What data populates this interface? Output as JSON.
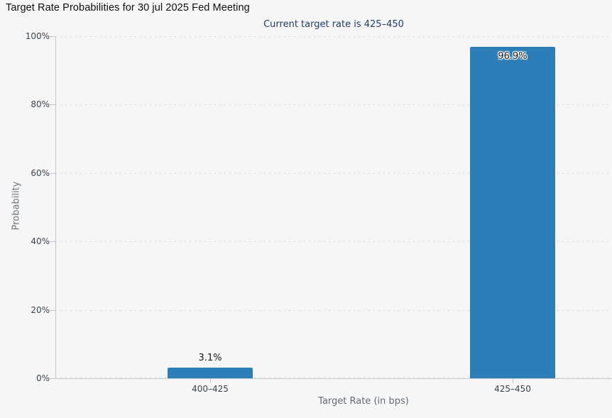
{
  "chart_data": {
    "type": "bar",
    "title": "Target Rate Probabilities for 30 jul 2025 Fed Meeting",
    "subtitle": "Current target rate is 425–450",
    "categories": [
      "400–425",
      "425–450"
    ],
    "values": [
      3.1,
      96.9
    ],
    "value_labels": [
      "3.1%",
      "96.9%"
    ],
    "xlabel": "Target Rate (in bps)",
    "ylabel": "Probability",
    "ylim": [
      0,
      100
    ],
    "ytick_values": [
      0,
      20,
      40,
      60,
      80,
      100
    ],
    "ytick_labels": [
      "0%",
      "20%",
      "40%",
      "60%",
      "80%",
      "100%"
    ],
    "grid": "dotted-horizontal",
    "legend": "none",
    "bar_color": "#2d7eb8",
    "subtitle_color": "#1e3c64"
  }
}
